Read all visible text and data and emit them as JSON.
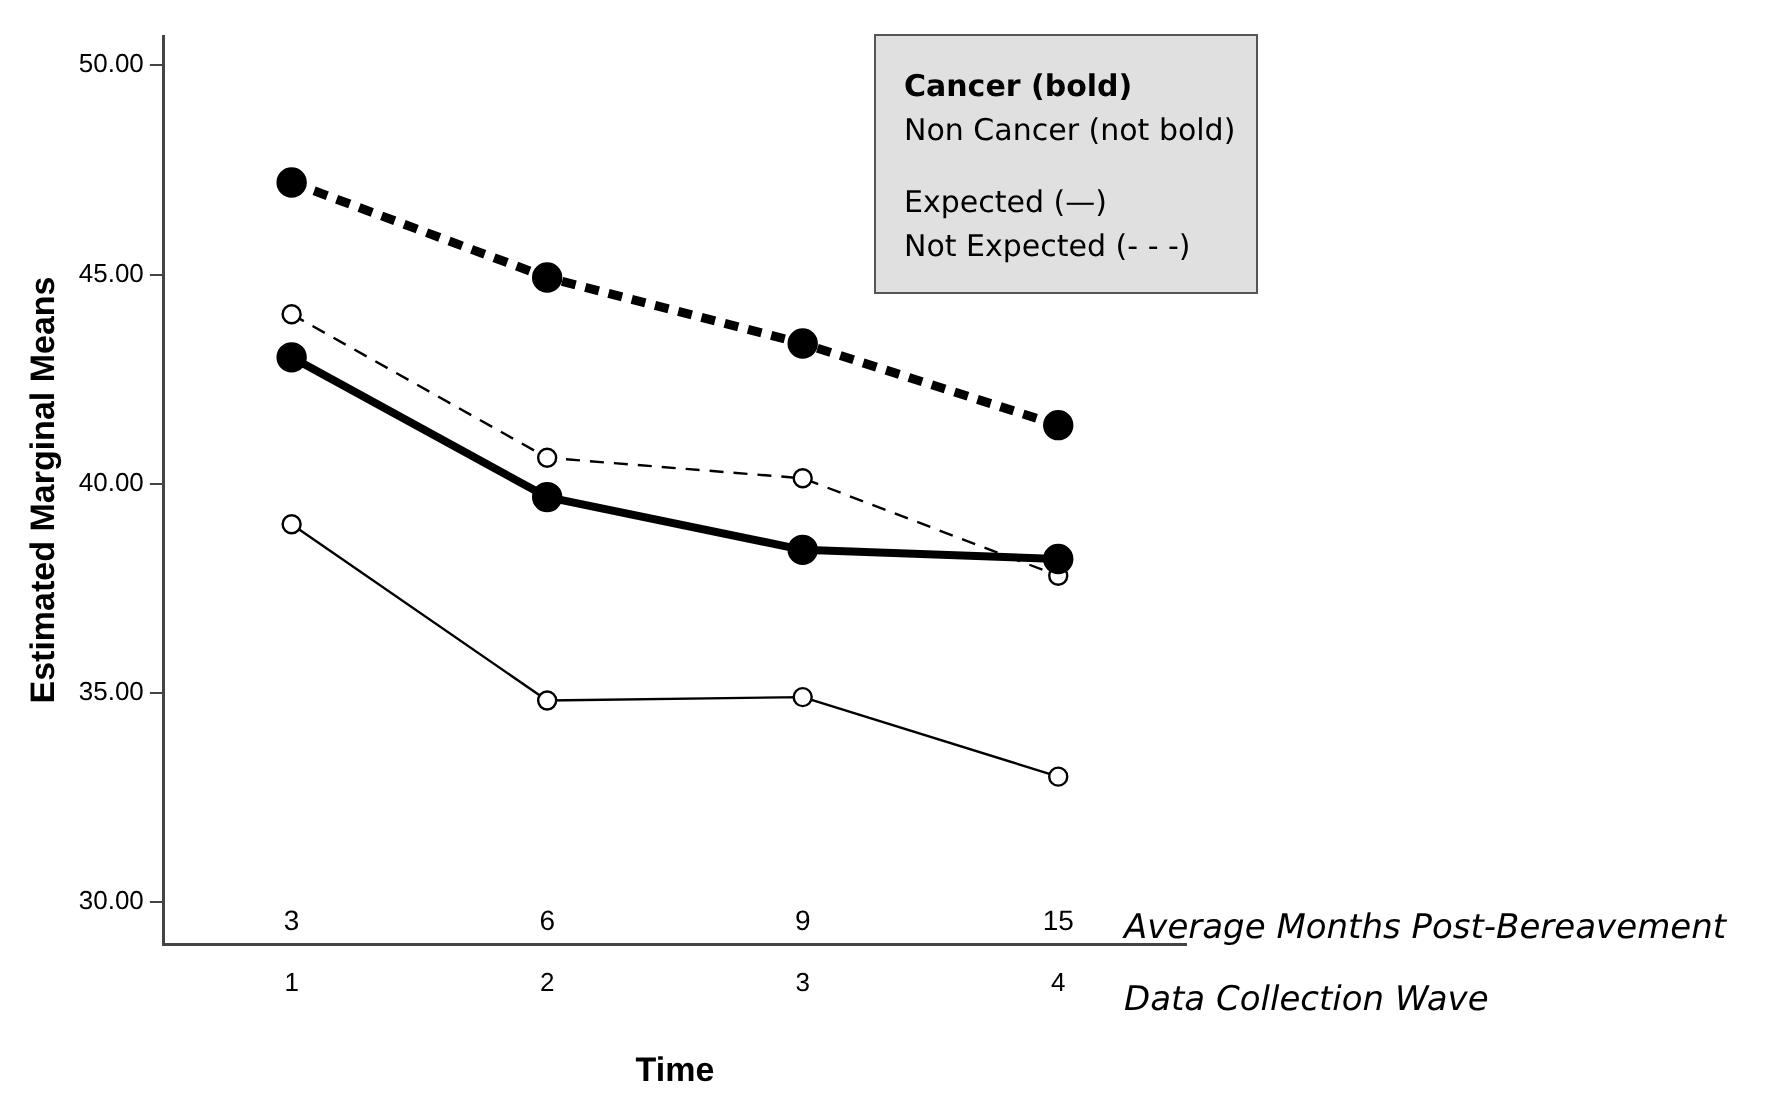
{
  "chart_data": {
    "type": "line",
    "xlabel": "Time",
    "ylabel": "Estimated Marginal Means",
    "categories": [
      "1",
      "2",
      "3",
      "4"
    ],
    "ylim": [
      29,
      50.7
    ],
    "yticks": [
      {
        "value": 30,
        "label": "30.00"
      },
      {
        "value": 35,
        "label": "35.00"
      },
      {
        "value": 40,
        "label": "40.00"
      },
      {
        "value": 45,
        "label": "45.00"
      },
      {
        "value": 50,
        "label": "50.00"
      }
    ],
    "grid": false,
    "legend": false,
    "marker": "circle",
    "series": [
      {
        "color": "#000000",
        "line_style": "dashed",
        "values": [
          47.2,
          44.93,
          43.35,
          41.4
        ]
      },
      {
        "color": "#000000",
        "line_style": "solid",
        "values": [
          43.02,
          39.68,
          38.42,
          38.2
        ]
      },
      {
        "color": "#000000",
        "line_style": "dashed",
        "values": [
          44.05,
          40.62,
          40.13,
          37.8
        ]
      },
      {
        "color": "#000000",
        "line_style": "solid",
        "values": [
          39.03,
          34.82,
          34.9,
          33.0
        ]
      }
    ],
    "annotations": [
      "3",
      "6",
      "9",
      "15",
      "Average Months Post-Bereavement",
      "Data Collection Wave",
      "Cancer (bold)",
      "Non Cancer (not bold)",
      "Expected (—)",
      "Not Expected (- - -)"
    ]
  }
}
